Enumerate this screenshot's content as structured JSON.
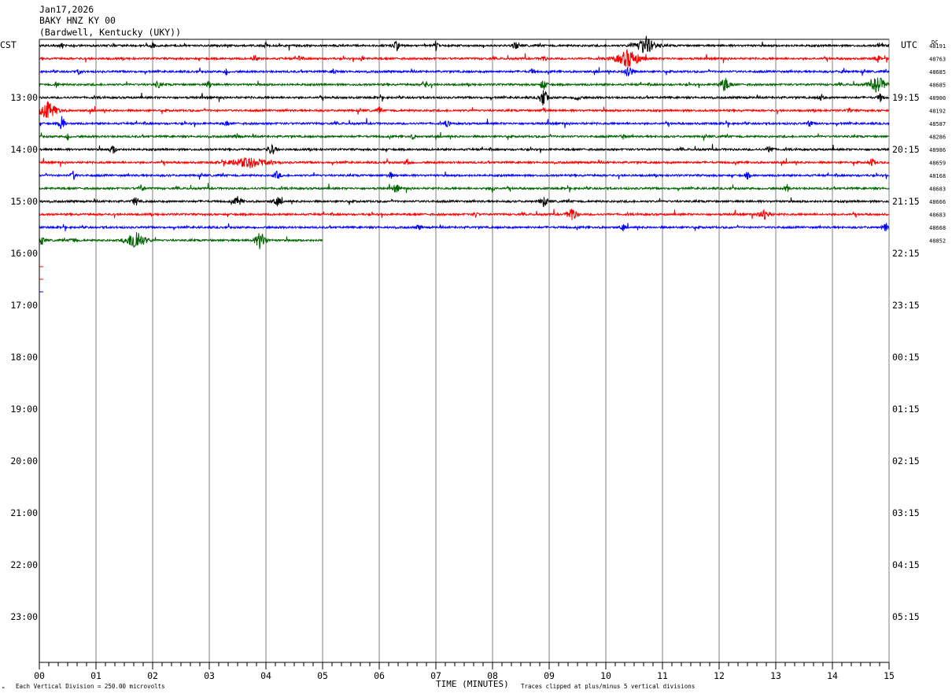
{
  "header": {
    "date": "Jan17,2026",
    "station": "BAKY HNZ KY 00",
    "location": "(Bardwell, Kentucky (UKY))"
  },
  "chart_data": {
    "type": "line",
    "title": "BAKY HNZ KY 00",
    "left_zone_label": "CST",
    "right_zone_label": "UTC",
    "dc_label": "DC",
    "xlabel": "TIME (MINUTES)",
    "xlim": [
      0,
      15
    ],
    "x_ticks": [
      "00",
      "01",
      "02",
      "03",
      "04",
      "05",
      "06",
      "07",
      "08",
      "09",
      "10",
      "11",
      "12",
      "13",
      "14",
      "15"
    ],
    "left_time_labels": [
      "13:00",
      "14:00",
      "15:00",
      "16:00",
      "17:00",
      "18:00",
      "19:00",
      "20:00",
      "21:00",
      "22:00",
      "23:00"
    ],
    "right_time_labels": [
      "19:15",
      "20:15",
      "21:15",
      "22:15",
      "23:15",
      "00:15",
      "01:15",
      "02:15",
      "03:15",
      "04:15",
      "05:15"
    ],
    "trace_colors": [
      "#000000",
      "#ff0000",
      "#0000ff",
      "#006400"
    ],
    "traces_per_hour": 4,
    "minutes_per_trace": 15,
    "dc_offsets": [
      "48191",
      "48763",
      "48685",
      "48685",
      "48900",
      "48192",
      "48587",
      "48286",
      "48986",
      "48659",
      "48168",
      "48683",
      "48666",
      "48683",
      "48668",
      "48852"
    ],
    "footer_left": "Each Vertical Division =  250.00 microvolts",
    "footer_right": "Traces clipped at plus/minus 5 vertical divisions",
    "corner_mark": "ᴹ",
    "last_trace_end_minute": 5.0
  }
}
